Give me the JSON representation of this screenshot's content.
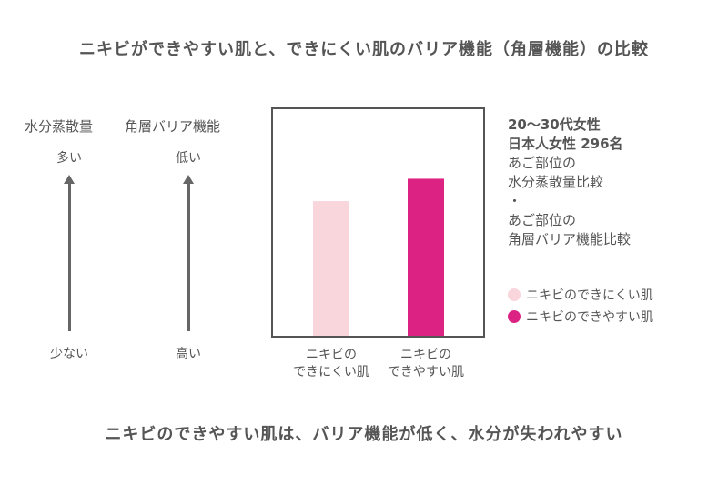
{
  "title": "ニキビができやすい肌と、できにくい肌のバリア機能（角層機能）の比較",
  "footer": "ニキビのできやすい肌は、バリア機能が低く、水分が失われやすい",
  "axes": [
    {
      "label": "水分蒸散量",
      "top": "多い",
      "bottom": "少ない"
    },
    {
      "label": "角層バリア機能",
      "top": "低い",
      "bottom": "高い"
    }
  ],
  "study": {
    "line1": "20〜30代女性",
    "line2": "日本人女性 296名",
    "line3": "あご部位の",
    "line4": "水分蒸散量比較",
    "line5": "・",
    "line6": "あご部位の",
    "line7": "角層バリア機能比較"
  },
  "legend": [
    {
      "label": "ニキビのできにくい肌",
      "color": "#f9d5dc"
    },
    {
      "label": "ニキビのできやすい肌",
      "color": "#dc2384"
    }
  ],
  "chart_data": {
    "type": "bar",
    "categories": [
      "ニキビの\nできにくい肌",
      "ニキビの\nできやすい肌"
    ],
    "category_lines": [
      [
        "ニキビの",
        "できにくい肌"
      ],
      [
        "ニキビの",
        "できやすい肌"
      ]
    ],
    "values": [
      0.6,
      0.7
    ],
    "value_scale": "relative (no numeric axis shown)",
    "ylim": [
      0,
      1
    ],
    "colors": [
      "#f9d5dc",
      "#dc2384"
    ],
    "grid": false
  }
}
